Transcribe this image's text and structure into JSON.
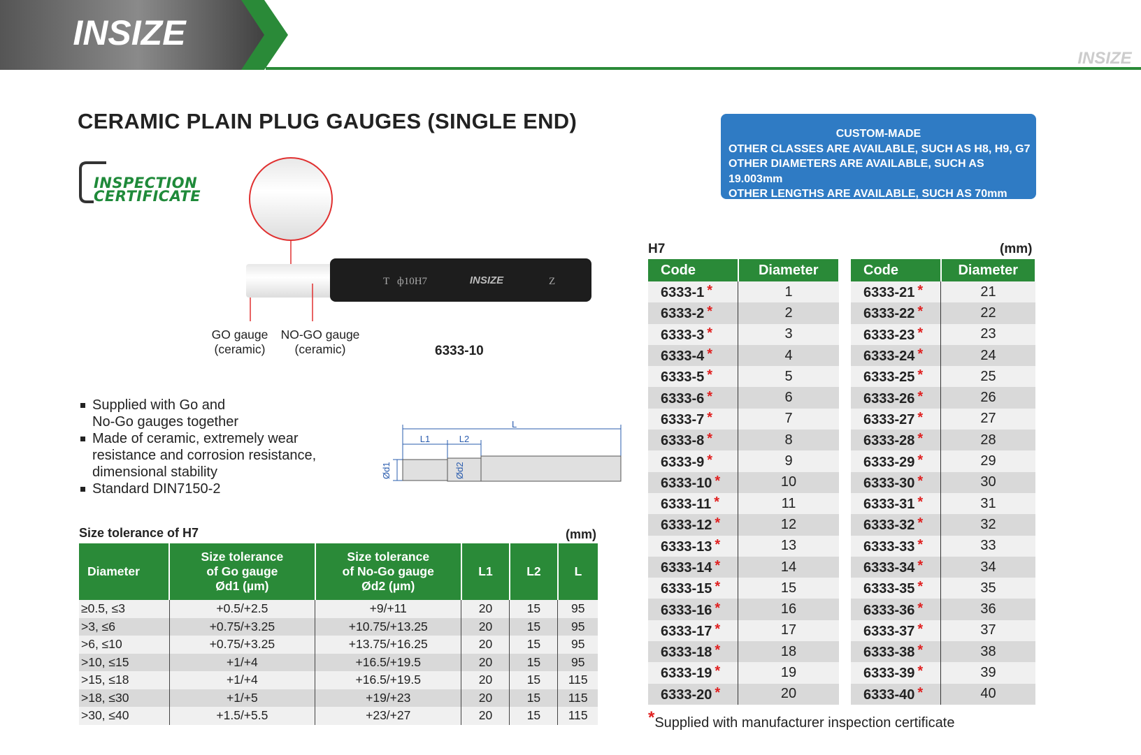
{
  "header": {
    "brand": "INSIZE"
  },
  "title": "CERAMIC PLAIN PLUG GAUGES (SINGLE END)",
  "badge": [
    "INSPECTION",
    "CERTIFICATE"
  ],
  "custom_box": [
    "CUSTOM-MADE",
    "OTHER CLASSES ARE AVAILABLE, SUCH AS H8, H9, G7",
    "OTHER DIAMETERS ARE AVAILABLE, SUCH AS 19.003mm",
    "OTHER LENGTHS ARE AVAILABLE, SUCH AS 70mm"
  ],
  "product": {
    "engraving": [
      "T",
      "ф10H7",
      "Z"
    ],
    "go_label": [
      "GO gauge",
      "(ceramic)"
    ],
    "nogo_label": [
      "NO-GO gauge",
      "(ceramic)"
    ],
    "model": "6333-10"
  },
  "features": [
    [
      "Supplied with Go and",
      "No-Go gauges together"
    ],
    [
      "Made of ceramic, extremely wear",
      "resistance and corrosion resistance,",
      "dimensional stability"
    ],
    [
      "Standard DIN7150-2"
    ]
  ],
  "dimension_diagram": {
    "L": "L",
    "L1": "L1",
    "L2": "L2",
    "d1": "Ød1",
    "d2": "Ød2"
  },
  "tolerance_table": {
    "caption": "Size tolerance of H7",
    "unit": "(mm)",
    "headers": [
      [
        "Diameter"
      ],
      [
        "Size tolerance",
        "of Go gauge",
        "Ød1 (µm)"
      ],
      [
        "Size tolerance",
        "of No-Go gauge",
        "Ød2 (µm)"
      ],
      [
        "L1"
      ],
      [
        "L2"
      ],
      [
        "L"
      ]
    ],
    "rows": [
      [
        "≥0.5, ≤3",
        "+0.5/+2.5",
        "+9/+11",
        20,
        15,
        95
      ],
      [
        ">3, ≤6",
        "+0.75/+3.25",
        "+10.75/+13.25",
        20,
        15,
        95
      ],
      [
        ">6, ≤10",
        "+0.75/+3.25",
        "+13.75/+16.25",
        20,
        15,
        95
      ],
      [
        ">10, ≤15",
        "+1/+4",
        "+16.5/+19.5",
        20,
        15,
        95
      ],
      [
        ">15, ≤18",
        "+1/+4",
        "+16.5/+19.5",
        20,
        15,
        115
      ],
      [
        ">18, ≤30",
        "+1/+5",
        "+19/+23",
        20,
        15,
        115
      ],
      [
        ">30, ≤40",
        "+1.5/+5.5",
        "+23/+27",
        20,
        15,
        115
      ]
    ]
  },
  "code_table": {
    "caption": "H7",
    "unit": "(mm)",
    "headers": [
      "Code",
      "Diameter"
    ],
    "columns": [
      [
        [
          "6333-1",
          1
        ],
        [
          "6333-2",
          2
        ],
        [
          "6333-3",
          3
        ],
        [
          "6333-4",
          4
        ],
        [
          "6333-5",
          5
        ],
        [
          "6333-6",
          6
        ],
        [
          "6333-7",
          7
        ],
        [
          "6333-8",
          8
        ],
        [
          "6333-9",
          9
        ],
        [
          "6333-10",
          10
        ],
        [
          "6333-11",
          11
        ],
        [
          "6333-12",
          12
        ],
        [
          "6333-13",
          13
        ],
        [
          "6333-14",
          14
        ],
        [
          "6333-15",
          15
        ],
        [
          "6333-16",
          16
        ],
        [
          "6333-17",
          17
        ],
        [
          "6333-18",
          18
        ],
        [
          "6333-19",
          19
        ],
        [
          "6333-20",
          20
        ]
      ],
      [
        [
          "6333-21",
          21
        ],
        [
          "6333-22",
          22
        ],
        [
          "6333-23",
          23
        ],
        [
          "6333-24",
          24
        ],
        [
          "6333-25",
          25
        ],
        [
          "6333-26",
          26
        ],
        [
          "6333-27",
          27
        ],
        [
          "6333-28",
          28
        ],
        [
          "6333-29",
          29
        ],
        [
          "6333-30",
          30
        ],
        [
          "6333-31",
          31
        ],
        [
          "6333-32",
          32
        ],
        [
          "6333-33",
          33
        ],
        [
          "6333-34",
          34
        ],
        [
          "6333-35",
          35
        ],
        [
          "6333-36",
          36
        ],
        [
          "6333-37",
          37
        ],
        [
          "6333-38",
          38
        ],
        [
          "6333-39",
          39
        ],
        [
          "6333-40",
          40
        ]
      ]
    ]
  },
  "footnote": {
    "mark": "*",
    "text": "Supplied with manufacturer inspection certificate"
  }
}
